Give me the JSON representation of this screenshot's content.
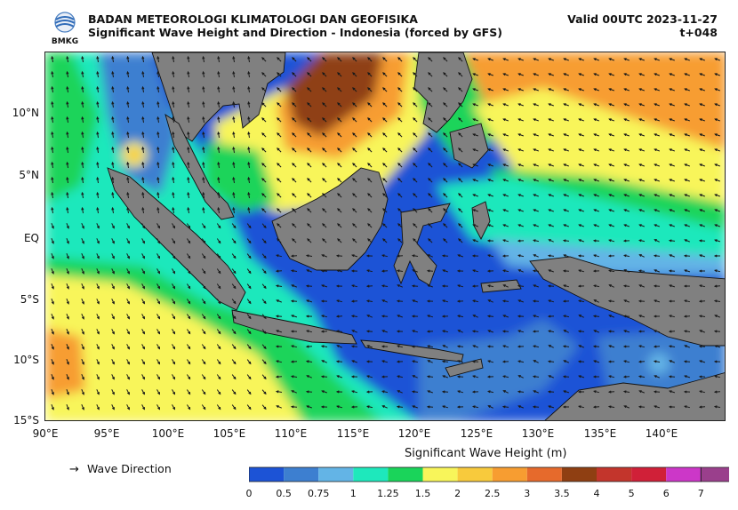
{
  "header": {
    "agency": "BADAN METEOROLOGI KLIMATOLOGI DAN GEOFISIKA",
    "subtitle": "Significant Wave Height and Direction - Indonesia (forced by GFS)",
    "valid": "Valid 00UTC 2023-11-27",
    "lead": "t+048",
    "logo_text": "BMKG"
  },
  "map": {
    "lat_labels": [
      "10°N",
      "5°N",
      "EQ",
      "5°S",
      "10°S",
      "15°S"
    ],
    "lon_labels": [
      "90°E",
      "95°E",
      "100°E",
      "105°E",
      "110°E",
      "115°E",
      "120°E",
      "125°E",
      "130°E",
      "135°E",
      "140°E"
    ],
    "colors": {
      "land": "#808080",
      "coast": "#111111",
      "arrow": "#1a1a1a"
    },
    "arrow_field": "wave direction arrows over ocean"
  },
  "legend": {
    "direction_label": "Wave Direction",
    "direction_symbol": "→"
  },
  "colorbar": {
    "title": "Significant Wave Height (m)",
    "ticks": [
      "0",
      "0.5",
      "0.75",
      "1",
      "1.25",
      "1.5",
      "2",
      "2.5",
      "3",
      "3.5",
      "4",
      "5",
      "6",
      "7"
    ],
    "colors": [
      "#1c53d6",
      "#3d7fd0",
      "#63b4e6",
      "#1ee8bc",
      "#1ad45a",
      "#f8f55a",
      "#f8ca3c",
      "#f79d31",
      "#e66a2c",
      "#8f3f12",
      "#c3352c",
      "#d02038",
      "#cc37c8",
      "#9a3f8c"
    ],
    "extend": "max"
  }
}
